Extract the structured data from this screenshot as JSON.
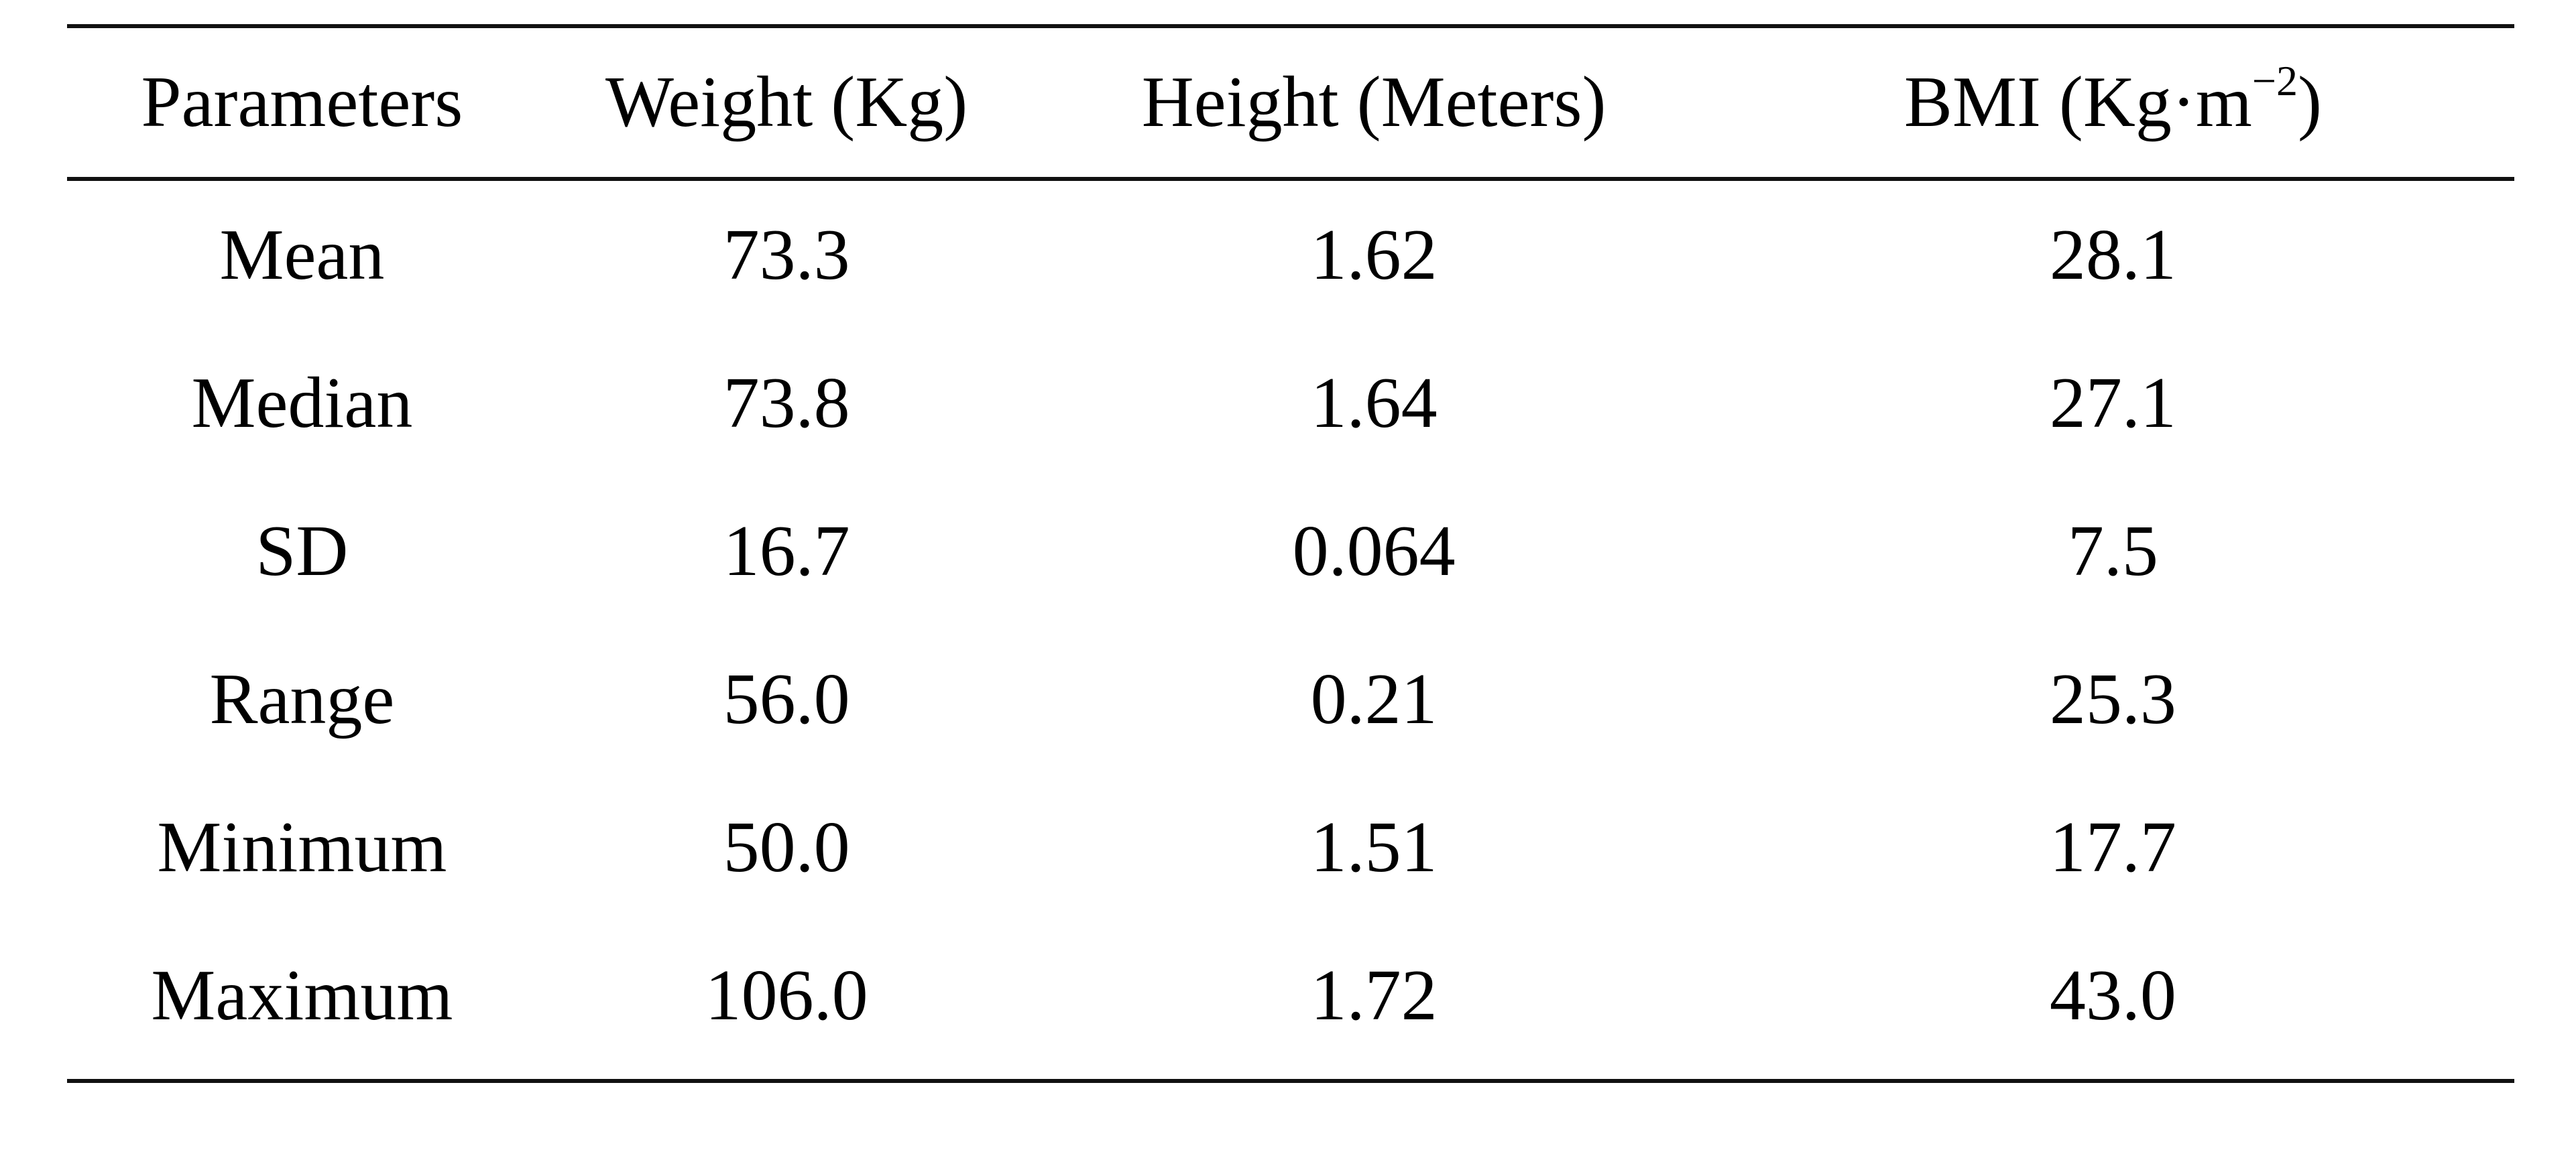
{
  "table": {
    "headers": {
      "parameters": "Parameters",
      "weight": "Weight (Kg)",
      "height": "Height (Meters)",
      "bmi_prefix": "BMI (Kg·m",
      "bmi_exponent": "−2",
      "bmi_suffix": ")"
    },
    "rows": [
      {
        "parameter": "Mean",
        "weight": "73.3",
        "height": "1.62",
        "bmi": "28.1"
      },
      {
        "parameter": "Median",
        "weight": "73.8",
        "height": "1.64",
        "bmi": "27.1"
      },
      {
        "parameter": "SD",
        "weight": "16.7",
        "height": "0.064",
        "bmi": "7.5"
      },
      {
        "parameter": "Range",
        "weight": "56.0",
        "height": "0.21",
        "bmi": "25.3"
      },
      {
        "parameter": "Minimum",
        "weight": "50.0",
        "height": "1.51",
        "bmi": "17.7"
      },
      {
        "parameter": "Maximum",
        "weight": "106.0",
        "height": "1.72",
        "bmi": "43.0"
      }
    ]
  }
}
